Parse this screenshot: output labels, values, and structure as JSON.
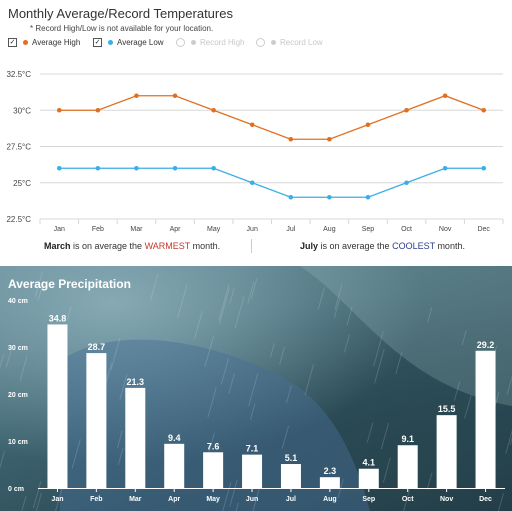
{
  "temperature_panel": {
    "title": "Monthly Average/Record Temperatures",
    "note": "* Record High/Low is not available for your location.",
    "legend": [
      {
        "label": "Average High",
        "checked": true,
        "color": "#e07020"
      },
      {
        "label": "Average Low",
        "checked": true,
        "color": "#3aaee8"
      },
      {
        "label": "Record High",
        "checked": false,
        "color": "#cccccc"
      },
      {
        "label": "Record Low",
        "checked": false,
        "color": "#cccccc"
      }
    ],
    "footer": {
      "warm_month": "March",
      "warm_text_pre": " is on average the ",
      "warm_word": "WARMEST",
      "warm_text_post": " month.",
      "cool_month": "July",
      "cool_text_pre": " is on average the ",
      "cool_word": "COOLEST",
      "cool_text_post": " month."
    }
  },
  "precipitation_panel": {
    "title": "Average Precipitation"
  },
  "chart_data": [
    {
      "type": "line",
      "title": "Monthly Average/Record Temperatures",
      "categories": [
        "Jan",
        "Feb",
        "Mar",
        "Apr",
        "May",
        "Jun",
        "Jul",
        "Aug",
        "Sep",
        "Oct",
        "Nov",
        "Dec"
      ],
      "series": [
        {
          "name": "Average High",
          "color": "#e07020",
          "values": [
            30,
            30,
            31,
            31,
            30,
            29,
            28,
            28,
            29,
            30,
            31,
            30
          ]
        },
        {
          "name": "Average Low",
          "color": "#3aaee8",
          "values": [
            26,
            26,
            26,
            26,
            26,
            25,
            24,
            24,
            24,
            25,
            26,
            26
          ]
        }
      ],
      "yticks": [
        22.5,
        25,
        27.5,
        30,
        32.5
      ],
      "ytick_labels": [
        "22.5°C",
        "25°C",
        "27.5°C",
        "30°C",
        "32.5°C"
      ],
      "ylim": [
        22.5,
        32.5
      ],
      "grid": true,
      "legend_position": "top-left"
    },
    {
      "type": "bar",
      "title": "Average Precipitation",
      "categories": [
        "Jan",
        "Feb",
        "Mar",
        "Apr",
        "May",
        "Jun",
        "Jul",
        "Aug",
        "Sep",
        "Oct",
        "Nov",
        "Dec"
      ],
      "values": [
        34.8,
        28.7,
        21.3,
        9.4,
        7.6,
        7.1,
        5.1,
        2.3,
        4.1,
        9.1,
        15.5,
        29.2
      ],
      "value_labels": [
        "34.8",
        "28.7",
        "21.3",
        "9.4",
        "7.6",
        "7.1",
        "5.1",
        "2.3",
        "4.1",
        "9.1",
        "15.5",
        "29.2"
      ],
      "yticks": [
        0,
        10,
        20,
        30,
        40
      ],
      "ytick_labels": [
        "0 cm",
        "10 cm",
        "20 cm",
        "30 cm",
        "40 cm"
      ],
      "ylim": [
        0,
        40
      ],
      "bar_color": "#ffffff",
      "grid": false
    }
  ]
}
